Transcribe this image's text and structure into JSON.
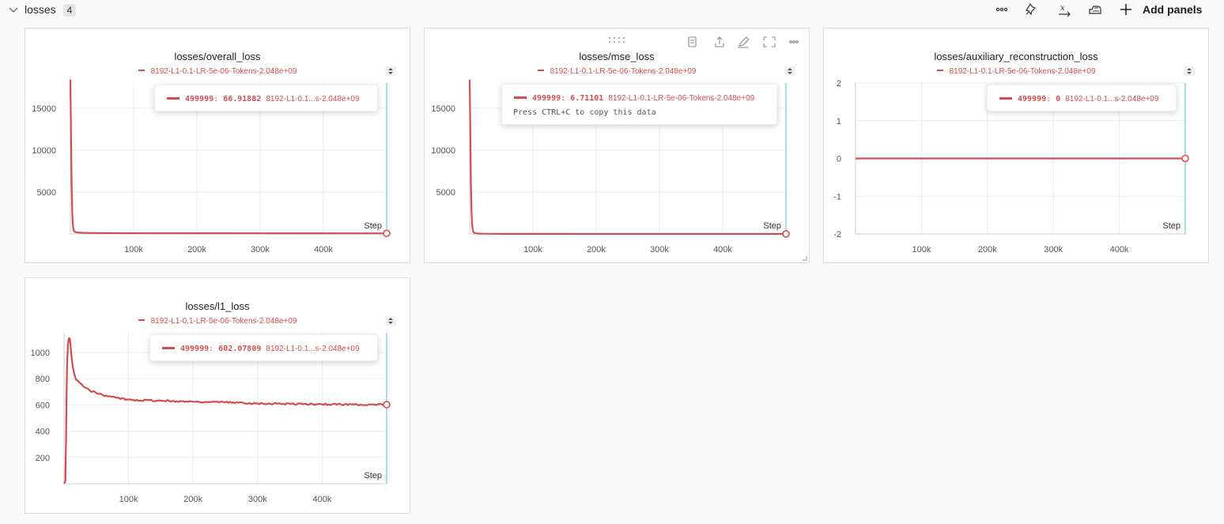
{
  "section": {
    "title": "losses",
    "count": "4",
    "add_panels_label": "Add panels"
  },
  "toolbar_icons": [
    "more-horizontal-icon",
    "pin-sparkle-icon",
    "x-axis-icon",
    "settings-icon"
  ],
  "colors": {
    "series": "#d24e4e",
    "cursor": "#4dc3d6",
    "grid": "#ececec"
  },
  "panels": [
    {
      "title": "losses/overall_loss",
      "legend": "8192-L1-0.1-LR-5e-06-Tokens-2.048e+09",
      "tooltip": {
        "step": "499999",
        "value": "66.91882",
        "run": "8192-L1-0.1...s-2.048e+09"
      },
      "x_axis_label": "Step"
    },
    {
      "title": "losses/mse_loss",
      "legend": "8192-L1-0.1-LR-5e-06-Tokens-2.048e+09",
      "tooltip": {
        "step": "499999",
        "value": "6.71101",
        "run": "8192-L1-0.1-LR-5e-06-Tokens-2.048e+09",
        "hint": "Press CTRL+C to copy this data"
      },
      "x_axis_label": "Step"
    },
    {
      "title": "losses/auxiliary_reconstruction_loss",
      "legend": "8192-L1-0.1-LR-5e-06-Tokens-2.048e+09",
      "tooltip": {
        "step": "499999",
        "value": "0",
        "run": "8192-L1-0.1...s-2.048e+09"
      },
      "x_axis_label": "Step"
    },
    {
      "title": "losses/l1_loss",
      "legend": "8192-L1-0.1-LR-5e-06-Tokens-2.048e+09",
      "tooltip": {
        "step": "499999",
        "value": "602.07809",
        "run": "8192-L1-0.1...s-2.048e+09"
      },
      "x_axis_label": "Step"
    }
  ],
  "chart_data": [
    {
      "type": "line",
      "title": "losses/overall_loss",
      "xlabel": "Step",
      "xlim": [
        0,
        499999
      ],
      "ylim": [
        0,
        18000
      ],
      "x_ticks": [
        "100k",
        "200k",
        "300k",
        "400k"
      ],
      "y_ticks": [
        "5000",
        "10000",
        "15000"
      ],
      "grid": true,
      "legend_position": "top-center",
      "series": [
        {
          "name": "8192-L1-0.1-LR-5e-06-Tokens-2.048e+09",
          "x": [
            0,
            1000,
            2000,
            3000,
            4000,
            5000,
            6000,
            8000,
            12000,
            20000,
            50000,
            100000,
            200000,
            300000,
            400000,
            499999
          ],
          "y": [
            18400,
            12000,
            6000,
            2500,
            1000,
            500,
            300,
            220,
            170,
            130,
            100,
            90,
            80,
            75,
            70,
            66.9
          ]
        }
      ]
    },
    {
      "type": "line",
      "title": "losses/mse_loss",
      "xlabel": "Step",
      "xlim": [
        0,
        499999
      ],
      "ylim": [
        0,
        18000
      ],
      "x_ticks": [
        "100k",
        "200k",
        "300k",
        "400k"
      ],
      "y_ticks": [
        "5000",
        "10000",
        "15000"
      ],
      "grid": true,
      "legend_position": "top-center",
      "series": [
        {
          "name": "8192-L1-0.1-LR-5e-06-Tokens-2.048e+09",
          "x": [
            0,
            1000,
            2000,
            3000,
            4000,
            5000,
            6000,
            8000,
            12000,
            20000,
            50000,
            100000,
            200000,
            300000,
            400000,
            499999
          ],
          "y": [
            18400,
            12000,
            6000,
            2500,
            1000,
            450,
            200,
            100,
            50,
            30,
            15,
            10,
            8,
            7,
            7,
            6.7
          ]
        }
      ]
    },
    {
      "type": "line",
      "title": "losses/auxiliary_reconstruction_loss",
      "xlabel": "Step",
      "xlim": [
        0,
        499999
      ],
      "ylim": [
        -2,
        2
      ],
      "x_ticks": [
        "100k",
        "200k",
        "300k",
        "400k"
      ],
      "y_ticks": [
        "-2",
        "-1",
        "0",
        "1",
        "2"
      ],
      "grid": true,
      "legend_position": "top-center",
      "series": [
        {
          "name": "8192-L1-0.1-LR-5e-06-Tokens-2.048e+09",
          "x": [
            0,
            499999
          ],
          "y": [
            0,
            0
          ]
        }
      ]
    },
    {
      "type": "line",
      "title": "losses/l1_loss",
      "xlabel": "Step",
      "xlim": [
        0,
        499999
      ],
      "ylim": [
        0,
        1150
      ],
      "x_ticks": [
        "100k",
        "200k",
        "300k",
        "400k"
      ],
      "y_ticks": [
        "200",
        "400",
        "600",
        "800",
        "1000"
      ],
      "grid": true,
      "legend_position": "top-center",
      "series": [
        {
          "name": "8192-L1-0.1-LR-5e-06-Tokens-2.048e+09",
          "x": [
            0,
            2000,
            3000,
            4000,
            5000,
            6000,
            7000,
            8000,
            9000,
            10000,
            11000,
            12000,
            14000,
            16000,
            18000,
            20000,
            25000,
            30000,
            40000,
            50000,
            60000,
            80000,
            100000,
            150000,
            200000,
            250000,
            300000,
            350000,
            400000,
            450000,
            499999
          ],
          "y": [
            0,
            20,
            300,
            700,
            950,
            1050,
            1100,
            1110,
            1100,
            1060,
            1000,
            950,
            880,
            830,
            800,
            790,
            765,
            740,
            710,
            690,
            675,
            655,
            640,
            632,
            625,
            620,
            612,
            608,
            605,
            603,
            602.08
          ]
        }
      ]
    }
  ]
}
